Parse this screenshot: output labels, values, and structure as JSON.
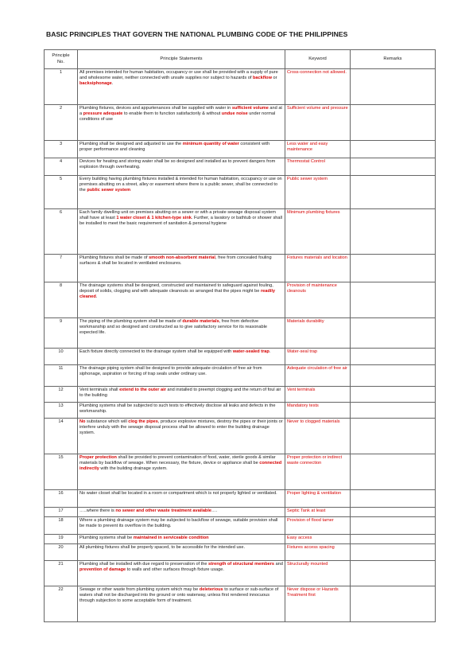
{
  "title": "BASIC PRINCIPLES THAT GOVERN THE NATIONAL PLUMBING CODE OF THE PHILIPPINES",
  "headers": [
    {
      "line1": "Principle",
      "line2": "No."
    },
    "Principle Statements",
    "Keyword",
    "Remarks"
  ],
  "rows": [
    {
      "no": "1",
      "statement": [
        {
          "t": "All premises intended for human habitation, occupancy or use shall be provided with a supply of pure and wholesome water, neither connected with unsafe supplies nor subject to hazards of "
        },
        {
          "t": "backflow",
          "hl": true
        },
        {
          "t": " or "
        },
        {
          "t": "backsiphonage",
          "hl": true
        },
        {
          "t": "."
        }
      ],
      "keyword": "Cross-connection not allowed.",
      "remarks": ""
    },
    {
      "no": "2",
      "statement": [
        {
          "t": "Plumbing fixtures, devices and appurtenances shall be supplied with water in "
        },
        {
          "t": "sufficient volume",
          "hl": true
        },
        {
          "t": " and at a "
        },
        {
          "t": "pressure adequate",
          "hl": true
        },
        {
          "t": " to enable them to function satisfactorily & without "
        },
        {
          "t": "undue noise",
          "hl": true
        },
        {
          "t": " under normal conditions of use"
        }
      ],
      "keyword": "Sufficient volume and pressure",
      "remarks": ""
    },
    {
      "no": "3",
      "statement": [
        {
          "t": "Plumbing shall be designed and adjusted to use the "
        },
        {
          "t": "minimum quantity of water",
          "hl": true
        },
        {
          "t": " consistent with proper performance and cleaning"
        }
      ],
      "keyword": "Less water and easy maintenance",
      "remarks": ""
    },
    {
      "no": "4",
      "statement": [
        {
          "t": "Devices for heating and storing water shall be so designed and installed as to prevent dangers from explosion through overheating."
        }
      ],
      "keyword": "Thermostat Control",
      "remarks": ""
    },
    {
      "no": "5",
      "statement": [
        {
          "t": "Every building having plumbing fixtures installed & intended for human habitation, occupancy or use on premises abutting on a street, alley or easement where there is a public sewer, shall be connected to the "
        },
        {
          "t": "public sewer system",
          "hl": true
        }
      ],
      "keyword": "Public sewer system",
      "remarks": ""
    },
    {
      "no": "6",
      "statement": [
        {
          "t": "Each family dwelling unit on premises abutting on a sewer or with a private sewage disposal system shall have at least "
        },
        {
          "t": "1 water closet & 1 kitchen-type sink",
          "hl": true
        },
        {
          "t": ". Further, a lavatory or bathtub or shower shall be installed to meet the basic requirement of sanitation & personal hygiene"
        }
      ],
      "keyword": "Minimum plumbing fixtures",
      "remarks": ""
    },
    {
      "no": "7",
      "statement": [
        {
          "t": "Plumbing fixtures shall be made of "
        },
        {
          "t": "smooth non-absorbent material",
          "hl": true
        },
        {
          "t": ", free from concealed fouling surfaces & shall be located in ventilated enclosures."
        }
      ],
      "keyword": "Fixtures materials and location",
      "remarks": ""
    },
    {
      "no": "8",
      "statement": [
        {
          "t": "The drainage systems shall be designed, constructed and maintained to safeguard against fouling, deposit of solids, clogging and with adequate cleanouts so arranged that the pipes might be "
        },
        {
          "t": "readily cleaned",
          "hl": true
        },
        {
          "t": "."
        }
      ],
      "keyword": "Provision of maintenance cleanouts",
      "remarks": ""
    },
    {
      "no": "9",
      "statement": [
        {
          "t": "The piping of the plumbing system shall be made of "
        },
        {
          "t": "durable materials",
          "hl": true
        },
        {
          "t": ", free from defective workmanship and so designed and constructed as to give satisfactory service for its reasonable expected life."
        }
      ],
      "keyword": "Materials durability",
      "remarks": ""
    },
    {
      "no": "10",
      "statement": [
        {
          "t": "Each fixture directly connected to the drainage system shall be equipped with "
        },
        {
          "t": "water-sealed trap",
          "hl": true
        },
        {
          "t": "."
        }
      ],
      "keyword": "Water-seal trap",
      "remarks": ""
    },
    {
      "no": "11",
      "statement": [
        {
          "t": "The drainage piping system shall be designed to provide adequate circulation of free air from siphonage, aspiration or forcing of trap seals under ordinary use."
        }
      ],
      "keyword": "Adequate circulation of free air",
      "remarks": ""
    },
    {
      "no": "12",
      "statement": [
        {
          "t": "Vent terminals shall "
        },
        {
          "t": "extend to the outer air",
          "hl": true
        },
        {
          "t": " and installed to preempt clogging and the return of foul air to the building"
        }
      ],
      "keyword": "Vent terminals",
      "remarks": ""
    },
    {
      "no": "13",
      "statement": [
        {
          "t": "Plumbing systems shall be subjected to such tests to effectively disclose all leaks and defects in the workmanship."
        }
      ],
      "keyword": "Mandatory tests",
      "remarks": ""
    },
    {
      "no": "14",
      "statement": [
        {
          "t": "No",
          "hl": true
        },
        {
          "t": " substance which will "
        },
        {
          "t": "clog the pipes",
          "hl": true
        },
        {
          "t": ", produce explosive mixtures, destroy the pipes or their joints or interfere unduly with the sewage disposal process shall be allowed to enter the building drainage system."
        }
      ],
      "keyword": "Never to clogged materials",
      "remarks": ""
    },
    {
      "no": "15",
      "statement": [
        {
          "t": "Proper protection",
          "hl": true
        },
        {
          "t": " shall be provided to prevent contamination of food, water, sterile goods & similar materials by backflow of sewage. When necessary, the fixture, device or appliance shall be "
        },
        {
          "t": "connected indirectly",
          "hl": true
        },
        {
          "t": " with the building drainage system."
        }
      ],
      "keyword": "Proper protection or indirect waste connection",
      "remarks": ""
    },
    {
      "no": "16",
      "statement": [
        {
          "t": "No water closet shall be located in a room or compartment which is not properly lighted or ventilated."
        }
      ],
      "keyword": "Proper lighting & ventilation",
      "remarks": ""
    },
    {
      "no": "17",
      "statement": [
        {
          "t": "…..where there is "
        },
        {
          "t": "no sewer and other waste treatment available",
          "hl": true
        },
        {
          "t": "…."
        }
      ],
      "keyword": "Septic Tank at least",
      "remarks": ""
    },
    {
      "no": "18",
      "statement": [
        {
          "t": "Where a plumbing drainage system may be subjected to backflow of sewage, suitable provision shall be made to prevent its overflow in the building."
        }
      ],
      "keyword": "Provision of flood tamer",
      "remarks": ""
    },
    {
      "no": "19",
      "statement": [
        {
          "t": "Plumbing systems shall be "
        },
        {
          "t": "maintained in serviceable condition",
          "hl": true
        }
      ],
      "keyword": "Easy access",
      "remarks": ""
    },
    {
      "no": "20",
      "statement": [
        {
          "t": "All plumbing fixtures shall be properly spaced, to be accessible for the intended use."
        }
      ],
      "keyword": "Fixtures access spacing",
      "remarks": ""
    },
    {
      "no": "21",
      "statement": [
        {
          "t": "Plumbing shall be installed with due regard to preservation of the "
        },
        {
          "t": "strength of structural members",
          "hl": true
        },
        {
          "t": " and "
        },
        {
          "t": "prevention of damage",
          "hl": true
        },
        {
          "t": " to walls and other surfaces through fixture usage."
        }
      ],
      "keyword": "Structurally mounted",
      "remarks": ""
    },
    {
      "no": "22",
      "statement": [
        {
          "t": "Sewage or other waste from plumbing system which may be "
        },
        {
          "t": "deleterious",
          "hl": true
        },
        {
          "t": " to surface or sub-surface of waters shall not be discharged into the ground or onto waterway, unless first rendered innocuous through subjection to some acceptable form of treatment."
        }
      ],
      "keyword": "Never dispose or Hazards Treatment first",
      "remarks": ""
    }
  ]
}
